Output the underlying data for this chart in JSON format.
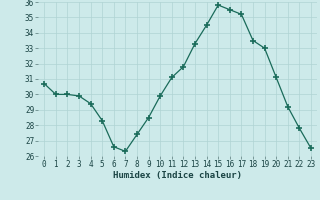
{
  "xlabel": "Humidex (Indice chaleur)",
  "x": [
    0,
    1,
    2,
    3,
    4,
    5,
    6,
    7,
    8,
    9,
    10,
    11,
    12,
    13,
    14,
    15,
    16,
    17,
    18,
    19,
    20,
    21,
    22,
    23
  ],
  "y": [
    30.7,
    30.0,
    30.0,
    29.9,
    29.4,
    28.3,
    26.6,
    26.3,
    27.4,
    28.5,
    29.9,
    31.1,
    31.8,
    33.3,
    34.5,
    35.8,
    35.5,
    35.2,
    33.5,
    33.0,
    31.1,
    29.2,
    27.8,
    26.5
  ],
  "line_color": "#1a6b5a",
  "marker": "+",
  "marker_size": 4,
  "marker_linewidth": 1.2,
  "background_color": "#cdeaea",
  "grid_color": "#b0d4d4",
  "ylim": [
    26,
    36
  ],
  "xlim": [
    -0.5,
    23.5
  ],
  "yticks": [
    26,
    27,
    28,
    29,
    30,
    31,
    32,
    33,
    34,
    35,
    36
  ],
  "xticks": [
    0,
    1,
    2,
    3,
    4,
    5,
    6,
    7,
    8,
    9,
    10,
    11,
    12,
    13,
    14,
    15,
    16,
    17,
    18,
    19,
    20,
    21,
    22,
    23
  ],
  "tick_fontsize": 5.5,
  "xlabel_fontsize": 6.5,
  "linewidth": 0.9
}
